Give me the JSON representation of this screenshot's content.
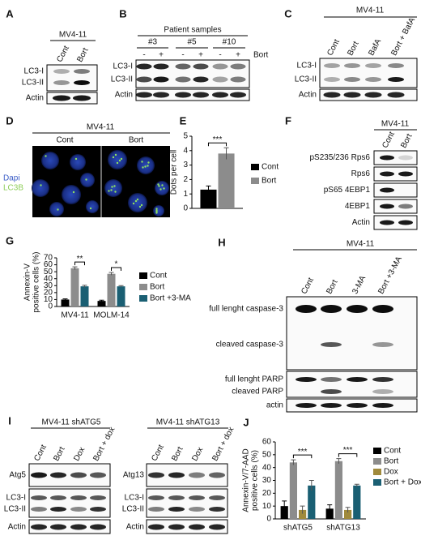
{
  "panels": {
    "A": {
      "label": "A",
      "header": "MV4-11",
      "lanes": [
        "Cont",
        "Bort"
      ],
      "rows": [
        "LC3-I",
        "LC3-II",
        "Actin"
      ]
    },
    "B": {
      "label": "B",
      "header": "Patient samples",
      "groups": [
        "#3",
        "#5",
        "#10"
      ],
      "treatment": [
        "-",
        "+",
        "-",
        "+",
        "-",
        "+"
      ],
      "treatment_label": "Bort",
      "rows": [
        "LC3-I",
        "LC3-II",
        "Actin"
      ]
    },
    "C": {
      "label": "C",
      "header": "MV4-11",
      "lanes": [
        "Cont",
        "Bort",
        "BafA",
        "Bort + BafA"
      ],
      "rows": [
        "LC3-I",
        "LC3-II",
        "Actin"
      ]
    },
    "D": {
      "label": "D",
      "header": "MV4-11",
      "conditions": [
        "Cont",
        "Bort"
      ],
      "stains": [
        "Dapi",
        "LC3B"
      ]
    },
    "F": {
      "label": "F",
      "header": "MV4-11",
      "lanes": [
        "Cont",
        "Bort"
      ],
      "rows": [
        "pS235/236 Rps6",
        "Rps6",
        "pS65 4EBP1",
        "4EBP1",
        "Actin"
      ]
    },
    "H": {
      "label": "H",
      "header": "MV4-11",
      "lanes": [
        "Cont",
        "Bort",
        "3-MA",
        "Bort +3-MA"
      ],
      "rows": [
        "full lenght caspase-3",
        "cleaved caspase-3",
        "full lenght PARP",
        "cleaved PARP",
        "actin"
      ]
    },
    "I": {
      "label": "I",
      "headers": [
        "MV4-11 shATG5",
        "MV4-11 shATG13"
      ],
      "lanes": [
        "Cont",
        "Bort",
        "Dox",
        "Bort + dox"
      ],
      "rows_left": [
        "Atg5",
        "LC3-I",
        "LC3-II",
        "Actin"
      ],
      "rows_right": [
        "Atg13",
        "LC3-I",
        "LC3-II",
        "Actin"
      ]
    }
  },
  "chart_data": [
    {
      "panel": "E",
      "type": "bar",
      "ylabel": "Dots per cell",
      "categories": [
        null
      ],
      "series": [
        {
          "name": "Cont",
          "color": "#000000",
          "values": [
            1.3
          ],
          "errors": [
            0.25
          ]
        },
        {
          "name": "Bort",
          "color": "#8c8c8c",
          "values": [
            3.8
          ],
          "errors": [
            0.4
          ]
        }
      ],
      "ylim": [
        0,
        5
      ],
      "yticks": [
        0,
        1,
        2,
        3,
        4,
        5
      ],
      "annotations": [
        "***"
      ]
    },
    {
      "panel": "G",
      "type": "bar",
      "ylabel": [
        "Annexin-V",
        "positive cells (%)"
      ],
      "categories": [
        "MV4-11",
        "MOLM-14"
      ],
      "series": [
        {
          "name": "Cont",
          "color": "#000000",
          "values": [
            10,
            8
          ],
          "errors": [
            1,
            1
          ]
        },
        {
          "name": "Bort",
          "color": "#8c8c8c",
          "values": [
            55,
            47
          ],
          "errors": [
            2,
            2
          ]
        },
        {
          "name": "Bort +3-MA",
          "color": "#1a5f73",
          "values": [
            29,
            29
          ],
          "errors": [
            1.5,
            1
          ]
        }
      ],
      "ylim": [
        0,
        70
      ],
      "yticks": [
        0,
        10,
        20,
        30,
        40,
        50,
        60,
        70
      ],
      "annotations": [
        "**",
        "*"
      ]
    },
    {
      "panel": "J",
      "type": "bar",
      "ylabel": [
        "Annexin-V/7-AAD",
        "positive cells (%)"
      ],
      "categories": [
        "shATG5",
        "shATG13"
      ],
      "series": [
        {
          "name": "Cont",
          "color": "#000000",
          "values": [
            10,
            8
          ],
          "errors": [
            4,
            3
          ]
        },
        {
          "name": "Bort",
          "color": "#8c8c8c",
          "values": [
            44,
            45
          ],
          "errors": [
            2,
            2
          ]
        },
        {
          "name": "Dox",
          "color": "#a08a3c",
          "values": [
            7,
            7
          ],
          "errors": [
            3,
            2
          ]
        },
        {
          "name": "Bort + Dox",
          "color": "#1a5f73",
          "values": [
            26,
            26
          ],
          "errors": [
            4,
            1
          ]
        }
      ],
      "ylim": [
        0,
        60
      ],
      "yticks": [
        0,
        10,
        20,
        30,
        40,
        50,
        60
      ],
      "annotations": [
        "***",
        "***"
      ]
    }
  ]
}
